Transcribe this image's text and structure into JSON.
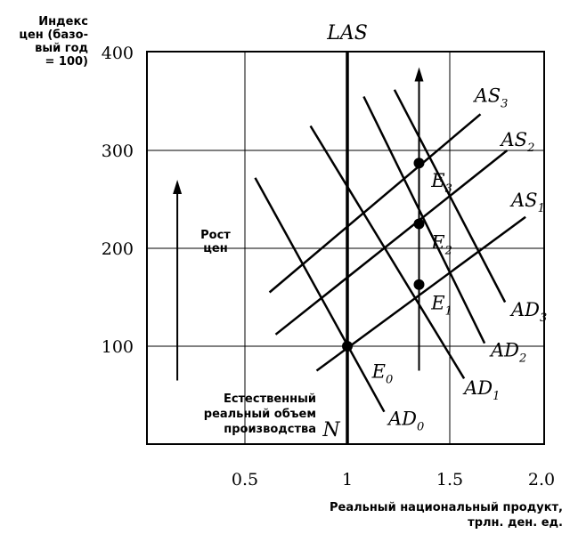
{
  "chart_data": {
    "type": "line",
    "title": "",
    "ylabel": [
      "Индекс",
      "цен (базо-",
      "вый год",
      "= 100)"
    ],
    "xlabel": [
      "Реальный национальный продукт,",
      "трлн. ден. ед."
    ],
    "xlim": [
      0.0,
      2.0
    ],
    "ylim": [
      0,
      400
    ],
    "x_ticks": [
      "0.5",
      "1",
      "1.5",
      "2.0"
    ],
    "y_ticks": [
      "100",
      "200",
      "300",
      "400"
    ],
    "grid": true,
    "las": {
      "label": "LAS",
      "x": 1.0
    },
    "las_foot_label": "N",
    "natural_output_label": [
      "Естественный",
      "реальный объем",
      "производства"
    ],
    "price_growth_label": [
      "Рост",
      "цен"
    ],
    "price_arrow": {
      "x": 0.17,
      "y_from": 65,
      "y_to": 270
    },
    "shift_arrow": {
      "x": 1.35,
      "y_from": 75,
      "y_to": 385
    },
    "as_curves": [
      {
        "name": "AS",
        "sub": "1",
        "from": [
          0.85,
          75
        ],
        "to": [
          1.87,
          232
        ],
        "label_at": [
          1.8,
          250
        ]
      },
      {
        "name": "AS",
        "sub": "2",
        "from": [
          0.65,
          112
        ],
        "to": [
          1.78,
          300
        ],
        "label_at": [
          1.75,
          312
        ]
      },
      {
        "name": "AS",
        "sub": "3",
        "from": [
          0.62,
          155
        ],
        "to": [
          1.65,
          337
        ],
        "label_at": [
          1.62,
          357
        ]
      }
    ],
    "ad_curves": [
      {
        "name": "AD",
        "sub": "0",
        "from": [
          0.55,
          272
        ],
        "to": [
          1.18,
          33
        ],
        "label_at": [
          1.2,
          27
        ]
      },
      {
        "name": "AD",
        "sub": "1",
        "from": [
          0.82,
          325
        ],
        "to": [
          1.57,
          67
        ],
        "label_at": [
          1.57,
          58
        ]
      },
      {
        "name": "AD",
        "sub": "2",
        "from": [
          1.08,
          355
        ],
        "to": [
          1.67,
          103
        ],
        "label_at": [
          1.7,
          97
        ]
      },
      {
        "name": "AD",
        "sub": "3",
        "from": [
          1.23,
          362
        ],
        "to": [
          1.77,
          145
        ],
        "label_at": [
          1.8,
          138
        ]
      }
    ],
    "equilibria": [
      {
        "name": "E",
        "sub": "0",
        "x": 1.0,
        "y": 100,
        "label_at": [
          1.12,
          75
        ]
      },
      {
        "name": "E",
        "sub": "1",
        "x": 1.35,
        "y": 163,
        "label_at": [
          1.41,
          145
        ]
      },
      {
        "name": "E",
        "sub": "2",
        "x": 1.35,
        "y": 225,
        "label_at": [
          1.41,
          207
        ]
      },
      {
        "name": "E",
        "sub": "3",
        "x": 1.35,
        "y": 287,
        "label_at": [
          1.41,
          270
        ]
      }
    ]
  }
}
